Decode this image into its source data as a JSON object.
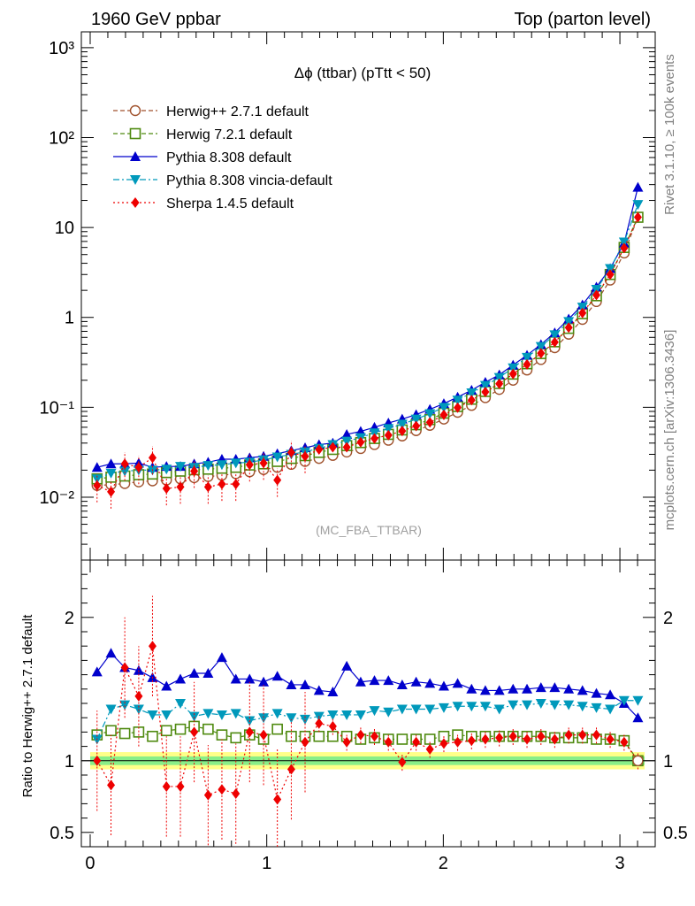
{
  "header": {
    "left": "1960 GeV ppbar",
    "right": "Top (parton level)"
  },
  "side_labels": {
    "rivet": "Rivet 3.1.10, ≥ 100k events",
    "mcplots": "mcplots.cern.ch [arXiv:1306.3436]"
  },
  "watermark": "(MC_FBA_TTBAR)",
  "chart_data": [
    {
      "type": "line",
      "title": "Δϕ (ttbar) (pTtt < 50)",
      "y_scale": "log",
      "xlim": [
        -0.05,
        3.2
      ],
      "ylim": [
        0.002,
        1500
      ],
      "x_ticks": [],
      "y_tick_labels": [
        {
          "value": 0.01,
          "label": "10⁻²"
        },
        {
          "value": 0.1,
          "label": "10⁻¹"
        },
        {
          "value": 1,
          "label": "1"
        },
        {
          "value": 10,
          "label": "10"
        },
        {
          "value": 100,
          "label": "10²"
        },
        {
          "value": 1000,
          "label": "10³"
        }
      ],
      "legend_position": "top-left",
      "series": [
        {
          "name": "Herwig++ 2.7.1 default",
          "color": "#a0522d",
          "marker": "circle-open",
          "dash": "dashed",
          "x": [
            0.039,
            0.118,
            0.196,
            0.275,
            0.353,
            0.432,
            0.511,
            0.589,
            0.668,
            0.746,
            0.825,
            0.903,
            0.982,
            1.06,
            1.139,
            1.217,
            1.296,
            1.374,
            1.453,
            1.532,
            1.61,
            1.689,
            1.767,
            1.846,
            1.924,
            2.003,
            2.081,
            2.16,
            2.238,
            2.317,
            2.395,
            2.474,
            2.553,
            2.631,
            2.71,
            2.788,
            2.867,
            2.945,
            3.024,
            3.102
          ],
          "y": [
            0.0135,
            0.0138,
            0.0142,
            0.0148,
            0.0152,
            0.0155,
            0.016,
            0.0165,
            0.017,
            0.0175,
            0.0183,
            0.0192,
            0.0203,
            0.0215,
            0.0232,
            0.025,
            0.027,
            0.0292,
            0.0318,
            0.0348,
            0.0385,
            0.043,
            0.048,
            0.055,
            0.063,
            0.074,
            0.088,
            0.105,
            0.128,
            0.158,
            0.2,
            0.26,
            0.34,
            0.46,
            0.65,
            0.95,
            1.5,
            2.6,
            5.2,
            13.0
          ]
        },
        {
          "name": "Herwig 7.2.1 default",
          "color": "#4f8a10",
          "marker": "square-open",
          "dash": "dashed",
          "x": [
            0.039,
            0.118,
            0.196,
            0.275,
            0.353,
            0.432,
            0.511,
            0.589,
            0.668,
            0.746,
            0.825,
            0.903,
            0.982,
            1.06,
            1.139,
            1.217,
            1.296,
            1.374,
            1.453,
            1.532,
            1.61,
            1.689,
            1.767,
            1.846,
            1.924,
            2.003,
            2.081,
            2.16,
            2.238,
            2.317,
            2.395,
            2.474,
            2.553,
            2.631,
            2.71,
            2.788,
            2.867,
            2.945,
            3.024,
            3.102
          ],
          "y": [
            0.016,
            0.0167,
            0.0172,
            0.0178,
            0.0181,
            0.0188,
            0.0195,
            0.0202,
            0.0205,
            0.021,
            0.0215,
            0.0228,
            0.0235,
            0.025,
            0.027,
            0.029,
            0.0315,
            0.034,
            0.0375,
            0.0405,
            0.045,
            0.05,
            0.056,
            0.064,
            0.073,
            0.086,
            0.102,
            0.123,
            0.15,
            0.184,
            0.234,
            0.305,
            0.396,
            0.535,
            0.755,
            1.1,
            1.74,
            3.0,
            6.0,
            13.0
          ]
        },
        {
          "name": "Pythia 8.308 default",
          "color": "#0000cc",
          "marker": "triangle-up",
          "dash": "solid",
          "x": [
            0.039,
            0.118,
            0.196,
            0.275,
            0.353,
            0.432,
            0.511,
            0.589,
            0.668,
            0.746,
            0.825,
            0.903,
            0.982,
            1.06,
            1.139,
            1.217,
            1.296,
            1.374,
            1.453,
            1.532,
            1.61,
            1.689,
            1.767,
            1.846,
            1.924,
            2.003,
            2.081,
            2.16,
            2.238,
            2.317,
            2.395,
            2.474,
            2.553,
            2.631,
            2.71,
            2.788,
            2.867,
            2.945,
            3.024,
            3.102
          ],
          "y": [
            0.0215,
            0.0235,
            0.0235,
            0.024,
            0.0215,
            0.022,
            0.022,
            0.0235,
            0.0245,
            0.0265,
            0.0265,
            0.0275,
            0.0285,
            0.0305,
            0.033,
            0.0355,
            0.0385,
            0.04,
            0.05,
            0.054,
            0.06,
            0.067,
            0.074,
            0.083,
            0.095,
            0.11,
            0.13,
            0.155,
            0.19,
            0.23,
            0.295,
            0.38,
            0.5,
            0.675,
            0.96,
            1.38,
            2.18,
            3.5,
            6.7,
            28.0
          ]
        },
        {
          "name": "Pythia 8.308 vincia-default",
          "color": "#0099bb",
          "marker": "triangle-down",
          "dash": "dashdot",
          "x": [
            0.039,
            0.118,
            0.196,
            0.275,
            0.353,
            0.432,
            0.511,
            0.589,
            0.668,
            0.746,
            0.825,
            0.903,
            0.982,
            1.06,
            1.139,
            1.217,
            1.296,
            1.374,
            1.453,
            1.532,
            1.61,
            1.689,
            1.767,
            1.846,
            1.924,
            2.003,
            2.081,
            2.16,
            2.238,
            2.317,
            2.395,
            2.474,
            2.553,
            2.631,
            2.71,
            2.788,
            2.867,
            2.945,
            3.024,
            3.102
          ],
          "y": [
            0.016,
            0.0185,
            0.0195,
            0.02,
            0.02,
            0.0205,
            0.022,
            0.0215,
            0.0225,
            0.023,
            0.024,
            0.0245,
            0.026,
            0.028,
            0.03,
            0.032,
            0.035,
            0.0385,
            0.042,
            0.046,
            0.052,
            0.058,
            0.065,
            0.074,
            0.085,
            0.1,
            0.12,
            0.145,
            0.175,
            0.215,
            0.275,
            0.36,
            0.475,
            0.64,
            0.9,
            1.3,
            2.05,
            3.5,
            6.9,
            18.0
          ]
        },
        {
          "name": "Sherpa 1.4.5 default",
          "color": "#ee0000",
          "marker": "diamond",
          "dash": "dotted",
          "x": [
            0.039,
            0.118,
            0.196,
            0.275,
            0.353,
            0.432,
            0.511,
            0.589,
            0.668,
            0.746,
            0.825,
            0.903,
            0.982,
            1.06,
            1.139,
            1.217,
            1.296,
            1.374,
            1.453,
            1.532,
            1.61,
            1.689,
            1.767,
            1.846,
            1.924,
            2.003,
            2.081,
            2.16,
            2.238,
            2.317,
            2.395,
            2.474,
            2.553,
            2.631,
            2.71,
            2.788,
            2.867,
            2.945,
            3.024,
            3.102
          ],
          "y": [
            0.0135,
            0.0115,
            0.0235,
            0.0215,
            0.0275,
            0.0125,
            0.013,
            0.0195,
            0.013,
            0.014,
            0.014,
            0.023,
            0.024,
            0.0155,
            0.0315,
            0.0285,
            0.034,
            0.036,
            0.036,
            0.041,
            0.045,
            0.049,
            0.0545,
            0.062,
            0.068,
            0.0825,
            0.099,
            0.12,
            0.148,
            0.183,
            0.235,
            0.3,
            0.399,
            0.53,
            0.77,
            1.12,
            1.77,
            3.0,
            5.9,
            13.0
          ]
        }
      ]
    },
    {
      "type": "line",
      "title": "",
      "ylabel": "Ratio to Herwig++ 2.7.1 default",
      "xlim": [
        -0.05,
        3.2
      ],
      "ylim": [
        0.4,
        2.4
      ],
      "x_tick_labels": [
        "0",
        "1",
        "2",
        "3"
      ],
      "y_tick_labels": [
        "0.5",
        "1",
        "2"
      ],
      "bands": {
        "outer_color": "#ffff88",
        "inner_color": "#88ee88",
        "outer": [
          0.94,
          1.06
        ],
        "inner": [
          0.97,
          1.03
        ]
      },
      "series": [
        {
          "name": "Herwig 7.2.1 default",
          "color": "#4f8a10",
          "marker": "square-open",
          "dash": "dashed",
          "x": [
            0.039,
            0.118,
            0.196,
            0.275,
            0.353,
            0.432,
            0.511,
            0.589,
            0.668,
            0.746,
            0.825,
            0.903,
            0.982,
            1.06,
            1.139,
            1.217,
            1.296,
            1.374,
            1.453,
            1.532,
            1.61,
            1.689,
            1.767,
            1.846,
            1.924,
            2.003,
            2.081,
            2.16,
            2.238,
            2.317,
            2.395,
            2.474,
            2.553,
            2.631,
            2.71,
            2.788,
            2.867,
            2.945,
            3.024,
            3.102
          ],
          "y": [
            1.18,
            1.21,
            1.19,
            1.2,
            1.17,
            1.21,
            1.22,
            1.24,
            1.22,
            1.18,
            1.16,
            1.18,
            1.15,
            1.22,
            1.17,
            1.17,
            1.17,
            1.17,
            1.17,
            1.15,
            1.16,
            1.15,
            1.15,
            1.15,
            1.15,
            1.17,
            1.18,
            1.17,
            1.17,
            1.17,
            1.17,
            1.17,
            1.17,
            1.16,
            1.16,
            1.16,
            1.15,
            1.15,
            1.14,
            1.0
          ]
        },
        {
          "name": "Pythia 8.308 default",
          "color": "#0000cc",
          "marker": "triangle-up",
          "dash": "solid",
          "x": [
            0.039,
            0.118,
            0.196,
            0.275,
            0.353,
            0.432,
            0.511,
            0.589,
            0.668,
            0.746,
            0.825,
            0.903,
            0.982,
            1.06,
            1.139,
            1.217,
            1.296,
            1.374,
            1.453,
            1.532,
            1.61,
            1.689,
            1.767,
            1.846,
            1.924,
            2.003,
            2.081,
            2.16,
            2.238,
            2.317,
            2.395,
            2.474,
            2.553,
            2.631,
            2.71,
            2.788,
            2.867,
            2.945,
            3.024,
            3.102
          ],
          "y": [
            1.62,
            1.75,
            1.65,
            1.63,
            1.58,
            1.52,
            1.57,
            1.61,
            1.61,
            1.72,
            1.57,
            1.57,
            1.55,
            1.59,
            1.53,
            1.53,
            1.49,
            1.48,
            1.66,
            1.55,
            1.56,
            1.56,
            1.53,
            1.55,
            1.54,
            1.52,
            1.54,
            1.5,
            1.49,
            1.49,
            1.5,
            1.5,
            1.51,
            1.51,
            1.5,
            1.49,
            1.47,
            1.46,
            1.4,
            1.3
          ]
        },
        {
          "name": "Pythia 8.308 vincia-default",
          "color": "#0099bb",
          "marker": "triangle-down",
          "dash": "dashdot",
          "x": [
            0.039,
            0.118,
            0.196,
            0.275,
            0.353,
            0.432,
            0.511,
            0.589,
            0.668,
            0.746,
            0.825,
            0.903,
            0.982,
            1.06,
            1.139,
            1.217,
            1.296,
            1.374,
            1.453,
            1.532,
            1.61,
            1.689,
            1.767,
            1.846,
            1.924,
            2.003,
            2.081,
            2.16,
            2.238,
            2.317,
            2.395,
            2.474,
            2.553,
            2.631,
            2.71,
            2.788,
            2.867,
            2.945,
            3.024,
            3.102
          ],
          "y": [
            1.15,
            1.36,
            1.39,
            1.36,
            1.32,
            1.32,
            1.4,
            1.31,
            1.33,
            1.32,
            1.33,
            1.28,
            1.3,
            1.33,
            1.3,
            1.29,
            1.31,
            1.32,
            1.32,
            1.32,
            1.35,
            1.34,
            1.36,
            1.36,
            1.36,
            1.37,
            1.38,
            1.38,
            1.38,
            1.36,
            1.39,
            1.39,
            1.4,
            1.39,
            1.39,
            1.38,
            1.37,
            1.36,
            1.42,
            1.42
          ]
        },
        {
          "name": "Sherpa 1.4.5 default",
          "color": "#ee0000",
          "marker": "diamond",
          "dash": "dotted",
          "x": [
            0.039,
            0.118,
            0.196,
            0.275,
            0.353,
            0.432,
            0.511,
            0.589,
            0.668,
            0.746,
            0.825,
            0.903,
            0.982,
            1.06,
            1.139,
            1.217,
            1.296,
            1.374,
            1.453,
            1.532,
            1.61,
            1.689,
            1.767,
            1.846,
            1.924,
            2.003,
            2.081,
            2.16,
            2.238,
            2.317,
            2.395,
            2.474,
            2.553,
            2.631,
            2.71,
            2.788,
            2.867,
            2.945,
            3.024,
            3.102
          ],
          "y": [
            1.0,
            0.83,
            1.65,
            1.45,
            1.8,
            0.82,
            0.82,
            1.2,
            0.76,
            0.8,
            0.77,
            1.2,
            1.18,
            0.73,
            0.94,
            1.13,
            1.26,
            1.24,
            1.13,
            1.18,
            1.17,
            1.13,
            0.99,
            1.13,
            1.08,
            1.12,
            1.13,
            1.14,
            1.15,
            1.16,
            1.17,
            1.15,
            1.17,
            1.15,
            1.18,
            1.18,
            1.18,
            1.15,
            1.13,
            1.0
          ]
        }
      ]
    }
  ]
}
